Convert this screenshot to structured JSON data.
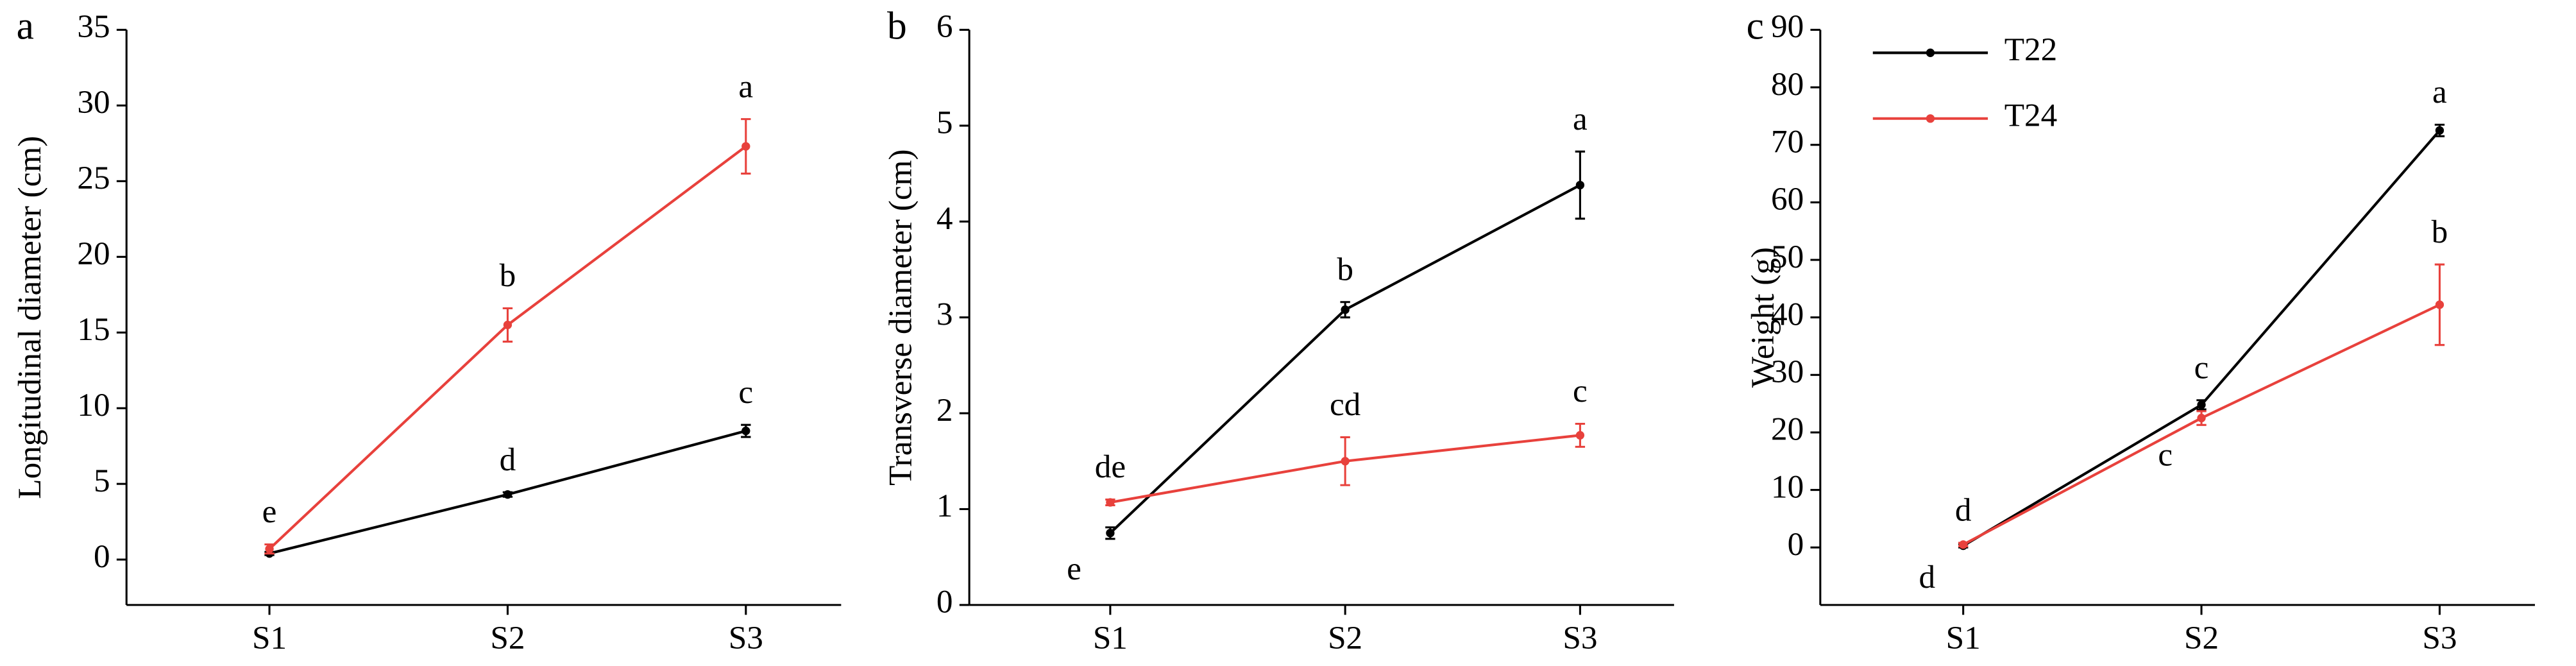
{
  "chart_data": [
    {
      "type": "line",
      "panel": "a",
      "ylabel": "Longitudinal diameter (cm)",
      "categories": [
        "S1",
        "S2",
        "S3"
      ],
      "ylim": [
        -3,
        35
      ],
      "yticks": [
        0,
        5,
        10,
        15,
        20,
        25,
        30,
        35
      ],
      "series": [
        {
          "color": "#000000",
          "values": [
            0.4,
            4.3,
            8.5
          ],
          "errors": [
            0.1,
            0.15,
            0.4
          ],
          "letters": [
            null,
            "d",
            "c"
          ]
        },
        {
          "color": "#e8413c",
          "values": [
            0.7,
            15.5,
            27.3
          ],
          "errors": [
            0.3,
            1.1,
            1.8
          ],
          "letters": [
            "e",
            "b",
            "a"
          ]
        }
      ]
    },
    {
      "type": "line",
      "panel": "b",
      "ylabel": "Transverse diameter (cm)",
      "categories": [
        "S1",
        "S2",
        "S3"
      ],
      "ylim": [
        0,
        6
      ],
      "yticks": [
        0,
        1,
        2,
        3,
        4,
        5,
        6
      ],
      "series": [
        {
          "color": "#000000",
          "values": [
            0.75,
            3.08,
            4.38
          ],
          "errors": [
            0.06,
            0.08,
            0.35
          ],
          "letters": [
            "e",
            "b",
            "a"
          ]
        },
        {
          "color": "#e8413c",
          "values": [
            1.07,
            1.5,
            1.77
          ],
          "errors": [
            0.03,
            0.25,
            0.12
          ],
          "letters": [
            "de",
            "cd",
            "c"
          ]
        }
      ]
    },
    {
      "type": "line",
      "panel": "c",
      "ylabel": "Weight (g)",
      "categories": [
        "S1",
        "S2",
        "S3"
      ],
      "ylim": [
        -10,
        90
      ],
      "yticks": [
        0,
        10,
        20,
        30,
        40,
        50,
        60,
        70,
        80,
        90
      ],
      "legend": "upper left",
      "series": [
        {
          "name": "T22",
          "color": "#000000",
          "values": [
            0.3,
            24.8,
            72.5
          ],
          "errors": [
            0.3,
            0.8,
            1.0
          ],
          "letters": [
            "d",
            "c",
            "a"
          ]
        },
        {
          "name": "T24",
          "color": "#e8413c",
          "values": [
            0.5,
            22.5,
            42.2
          ],
          "errors": [
            0.3,
            1.2,
            7.0
          ],
          "letters": [
            "d",
            "c",
            "b"
          ]
        }
      ]
    }
  ]
}
